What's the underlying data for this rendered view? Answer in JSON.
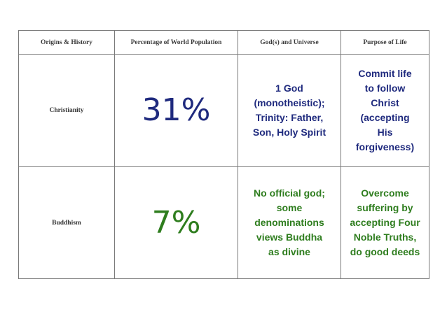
{
  "colors": {
    "blue": "#1f2a7e",
    "green": "#2e7d1e",
    "border": "#7a7a7a"
  },
  "headers": {
    "origins": "Origins & History",
    "percentage": "Percentage of World Population",
    "gods": "God(s) and Universe",
    "purpose": "Purpose of Life"
  },
  "rows": [
    {
      "name": "Christianity",
      "percentage": "31%",
      "gods": [
        "1 God",
        "(monotheistic);",
        "Trinity: Father,",
        "Son, Holy Spirit"
      ],
      "purpose": [
        "Commit life",
        "to follow",
        "Christ",
        "(accepting",
        "His",
        "forgiveness)"
      ]
    },
    {
      "name": "Buddhism",
      "percentage": "7%",
      "gods": [
        "No official god;",
        "some",
        "denominations",
        "views Buddha",
        "as divine"
      ],
      "purpose": [
        "Overcome",
        "suffering by",
        "accepting Four",
        "Noble Truths,",
        "do good deeds"
      ]
    }
  ]
}
